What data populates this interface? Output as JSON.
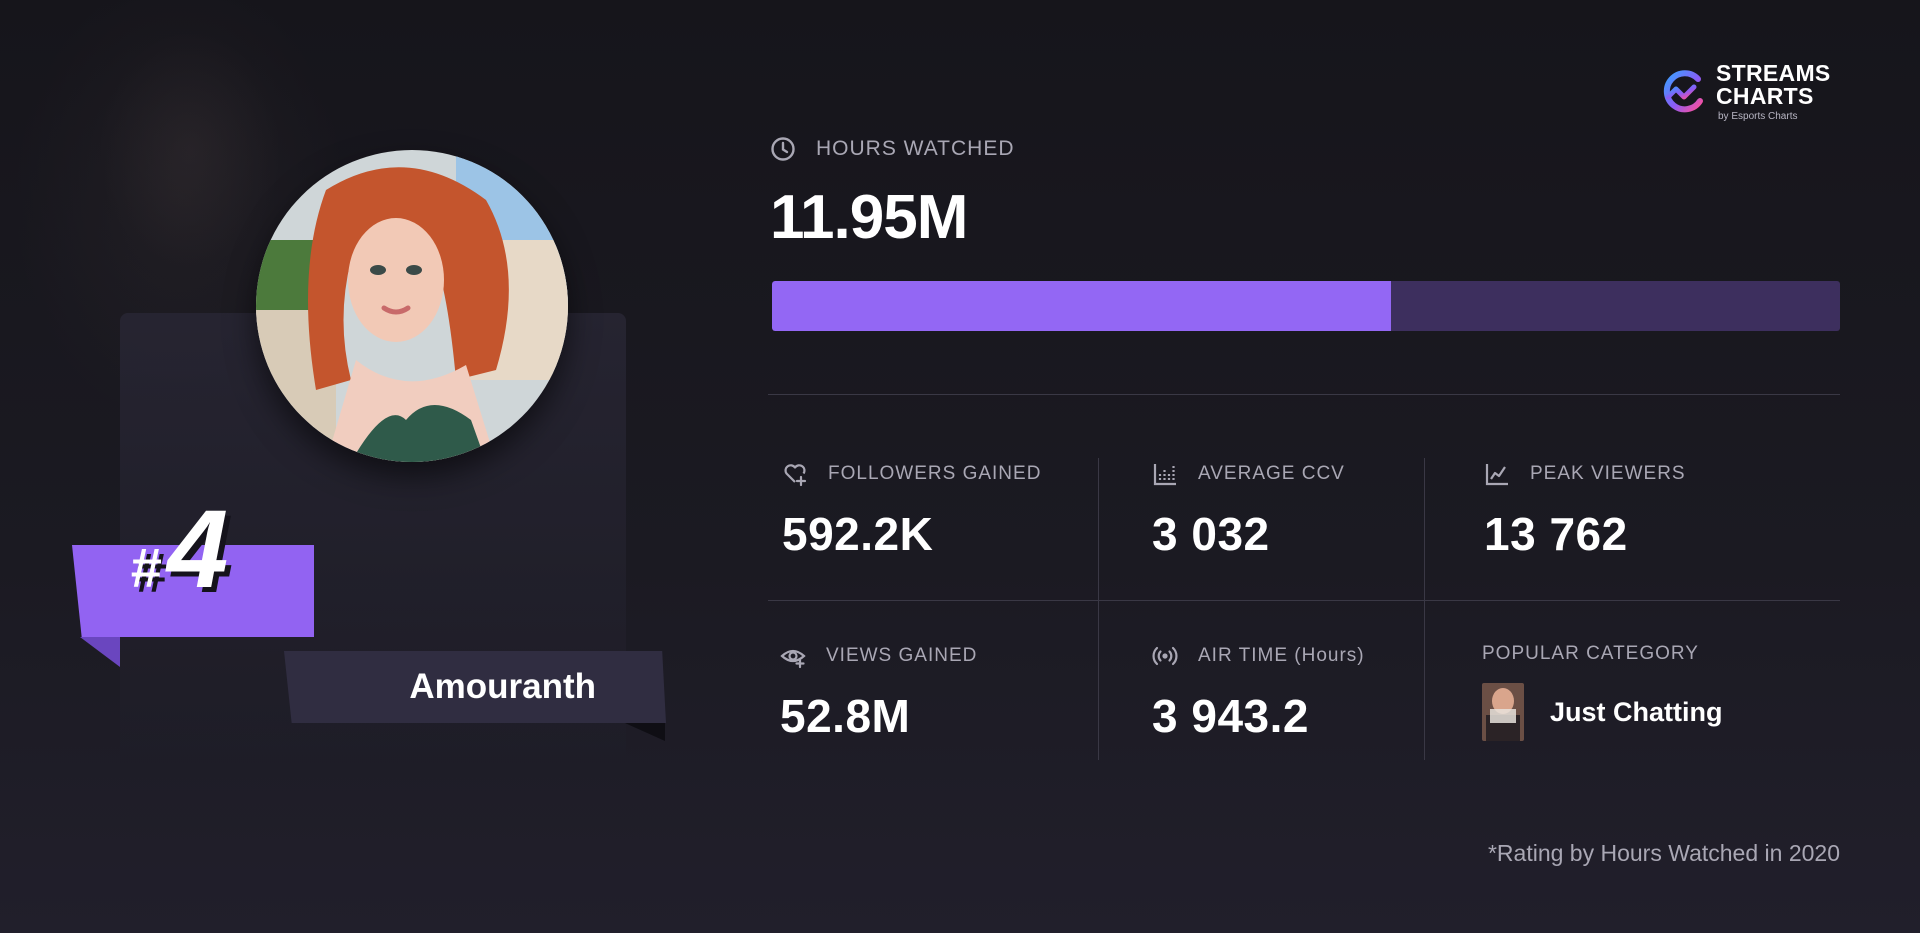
{
  "brand": {
    "title_line1": "STREAMS",
    "title_line2": "CHARTS",
    "subtitle": "by Esports Charts"
  },
  "streamer": {
    "rank_hash": "#",
    "rank": "4",
    "name": "Amouranth"
  },
  "hours_watched": {
    "label": "HOURS WATCHED",
    "value": "11.95M",
    "bar_fraction": 0.58
  },
  "stats": [
    {
      "label": "FOLLOWERS GAINED",
      "value": "592.2K",
      "icon": "heart-plus-icon"
    },
    {
      "label": "AVERAGE CCV",
      "value": "3 032",
      "icon": "bar-chart-icon"
    },
    {
      "label": "PEAK VIEWERS",
      "value": "13 762",
      "icon": "line-chart-icon"
    },
    {
      "label": "VIEWS GAINED",
      "value": "52.8M",
      "icon": "eye-plus-icon"
    },
    {
      "label": "AIR TIME (Hours)",
      "value": "3 943.2",
      "icon": "broadcast-icon"
    },
    {
      "label": "POPULAR CATEGORY",
      "value": "Just Chatting",
      "icon": "category-thumbnail"
    }
  ],
  "footnote": "*Rating by Hours Watched in 2020",
  "colors": {
    "accent": "#9367f4",
    "bar_track": "#3d2f5e",
    "background": "#1b1a22",
    "name_ribbon": "#302d41"
  }
}
